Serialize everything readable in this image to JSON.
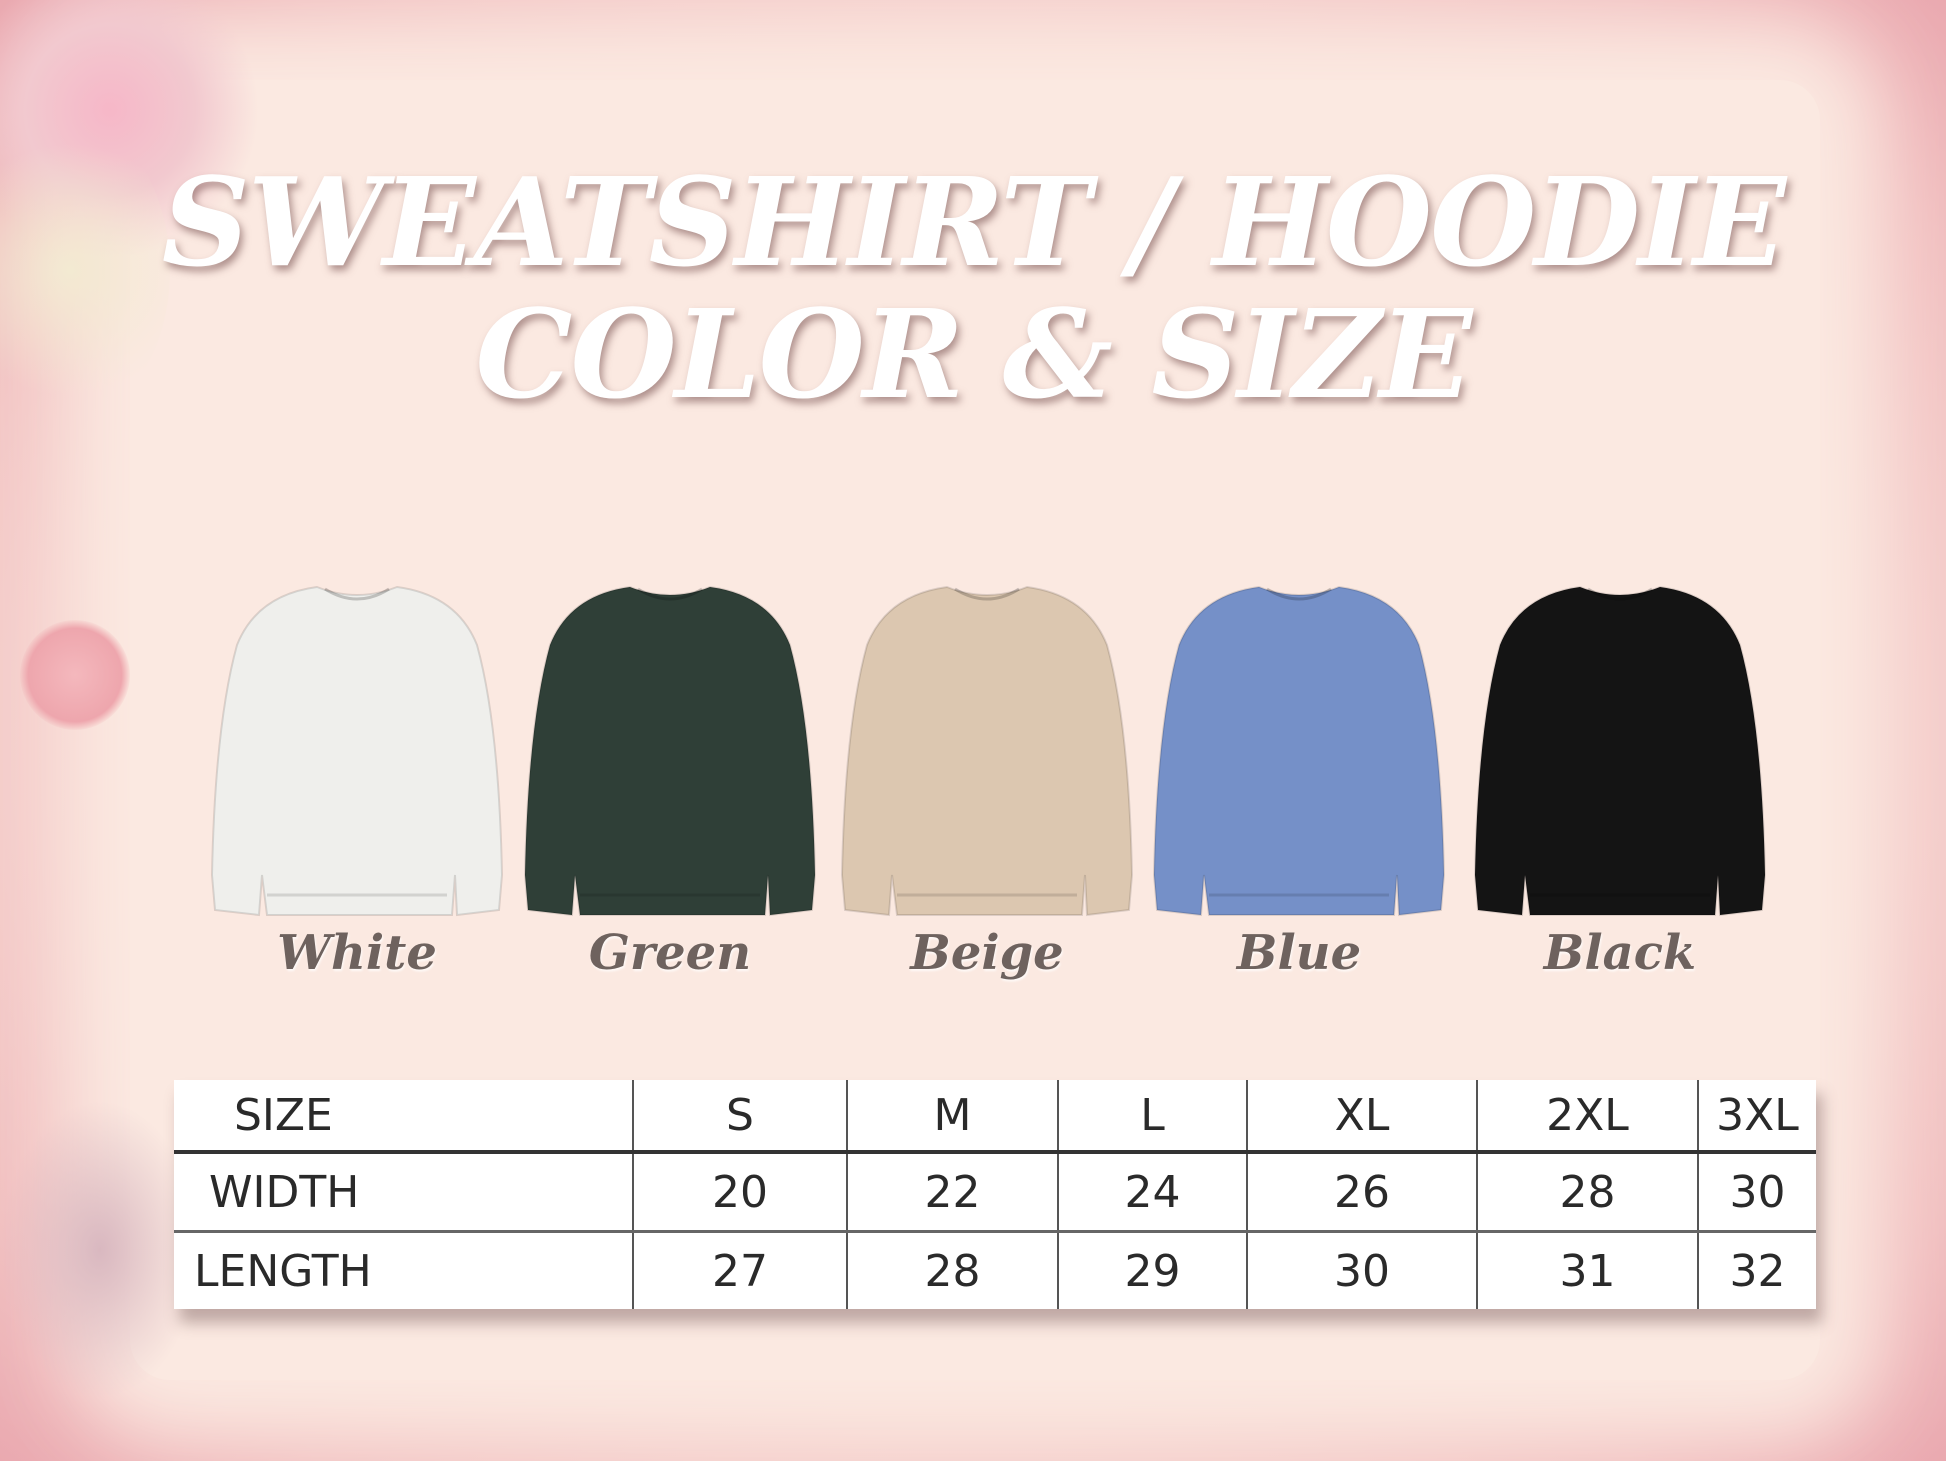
{
  "title": {
    "line1": "SWEATSHIRT / HOODIE",
    "line2": "COLOR & SIZE"
  },
  "colors": [
    {
      "label": "White",
      "swatch": "#efefec"
    },
    {
      "label": "Green",
      "swatch": "#2f3f37"
    },
    {
      "label": "Beige",
      "swatch": "#dcc7b0"
    },
    {
      "label": "Blue",
      "swatch": "#7590c8"
    },
    {
      "label": "Black",
      "swatch": "#141414"
    }
  ],
  "size_table": {
    "headers": [
      "SIZE",
      "S",
      "M",
      "L",
      "XL",
      "2XL",
      "3XL"
    ],
    "rows": [
      [
        "WIDTH",
        "20",
        "22",
        "24",
        "26",
        "28",
        "30"
      ],
      [
        "LENGTH",
        "27",
        "28",
        "29",
        "30",
        "31",
        "32"
      ]
    ]
  }
}
